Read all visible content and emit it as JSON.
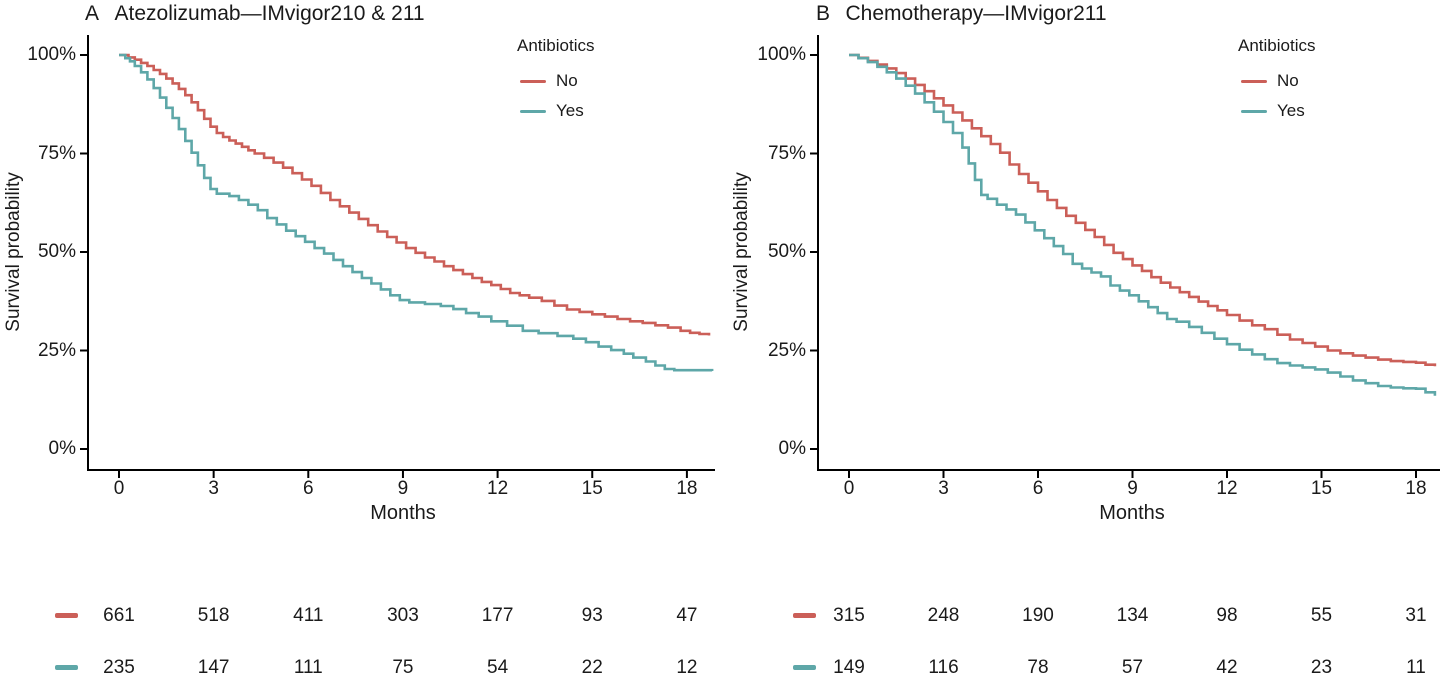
{
  "figure": {
    "background": "#ffffff",
    "axis_color": "#000000",
    "text_color": "#1a1a1a"
  },
  "chart_data": [
    {
      "type": "line",
      "subtype": "kaplan-meier-step",
      "panel_label": "A",
      "title": "Atezolizumab—IMvigor210 & 211",
      "xlabel": "Months",
      "ylabel": "Survival probability",
      "xlim": [
        0,
        18.8
      ],
      "ylim": [
        0,
        100
      ],
      "grid": false,
      "x_ticks": [
        0,
        3,
        6,
        9,
        12,
        15,
        18
      ],
      "x_tick_labels": [
        "0",
        "3",
        "6",
        "9",
        "12",
        "15",
        "18"
      ],
      "y_ticks": [
        100,
        75,
        50,
        25,
        0
      ],
      "y_tick_labels": [
        "100%",
        "75%",
        "50%",
        "25%",
        "0%"
      ],
      "legend": {
        "title": "Antibiotics",
        "position": "top-right-inside"
      },
      "series": [
        {
          "name": "No",
          "color": "#CB5F58",
          "points": [
            [
              0,
              100
            ],
            [
              0.3,
              99.4
            ],
            [
              0.5,
              98.8
            ],
            [
              0.7,
              98
            ],
            [
              0.9,
              97.2
            ],
            [
              1.1,
              96.2
            ],
            [
              1.3,
              95.2
            ],
            [
              1.5,
              94
            ],
            [
              1.7,
              92.8
            ],
            [
              1.9,
              91.4
            ],
            [
              2.1,
              89.8
            ],
            [
              2.3,
              88
            ],
            [
              2.5,
              86
            ],
            [
              2.7,
              83.8
            ],
            [
              2.9,
              81.8
            ],
            [
              3.1,
              80.2
            ],
            [
              3.3,
              79.2
            ],
            [
              3.5,
              78.3
            ],
            [
              3.7,
              77.5
            ],
            [
              3.9,
              76.7
            ],
            [
              4.1,
              75.8
            ],
            [
              4.3,
              75
            ],
            [
              4.6,
              73.9
            ],
            [
              4.9,
              72.7
            ],
            [
              5.2,
              71.4
            ],
            [
              5.5,
              70
            ],
            [
              5.8,
              68.4
            ],
            [
              6.1,
              66.8
            ],
            [
              6.4,
              65
            ],
            [
              6.7,
              63.2
            ],
            [
              7,
              61.6
            ],
            [
              7.3,
              60
            ],
            [
              7.6,
              58.4
            ],
            [
              7.9,
              56.8
            ],
            [
              8.2,
              55.2
            ],
            [
              8.5,
              53.8
            ],
            [
              8.8,
              52.4
            ],
            [
              9.1,
              51
            ],
            [
              9.4,
              49.8
            ],
            [
              9.7,
              48.6
            ],
            [
              10,
              47.6
            ],
            [
              10.3,
              46.4
            ],
            [
              10.6,
              45.4
            ],
            [
              10.9,
              44.4
            ],
            [
              11.2,
              43.4
            ],
            [
              11.5,
              42.4
            ],
            [
              11.8,
              41.6
            ],
            [
              12.1,
              40.6
            ],
            [
              12.4,
              39.6
            ],
            [
              12.7,
              39
            ],
            [
              13,
              38.4
            ],
            [
              13.4,
              37.6
            ],
            [
              13.8,
              36.4
            ],
            [
              14.2,
              35.4
            ],
            [
              14.6,
              34.8
            ],
            [
              15,
              34.2
            ],
            [
              15.4,
              33.6
            ],
            [
              15.8,
              33
            ],
            [
              16.2,
              32.4
            ],
            [
              16.6,
              32
            ],
            [
              17,
              31.4
            ],
            [
              17.4,
              30.8
            ],
            [
              17.8,
              30
            ],
            [
              18.1,
              29.5
            ],
            [
              18.4,
              29.2
            ],
            [
              18.7,
              28.8
            ]
          ]
        },
        {
          "name": "Yes",
          "color": "#5EA7A8",
          "points": [
            [
              0,
              100
            ],
            [
              0.2,
              99.2
            ],
            [
              0.35,
              98.4
            ],
            [
              0.5,
              97.2
            ],
            [
              0.7,
              95.6
            ],
            [
              0.9,
              93.8
            ],
            [
              1.1,
              91.6
            ],
            [
              1.3,
              89.2
            ],
            [
              1.5,
              86.6
            ],
            [
              1.7,
              84
            ],
            [
              1.9,
              81.2
            ],
            [
              2.1,
              78.2
            ],
            [
              2.3,
              75.2
            ],
            [
              2.5,
              72
            ],
            [
              2.7,
              68.8
            ],
            [
              2.9,
              66
            ],
            [
              3.1,
              64.8
            ],
            [
              3.5,
              64.2
            ],
            [
              3.8,
              63.2
            ],
            [
              4.1,
              62
            ],
            [
              4.4,
              60.6
            ],
            [
              4.7,
              58.6
            ],
            [
              5,
              57
            ],
            [
              5.3,
              55.4
            ],
            [
              5.6,
              54
            ],
            [
              5.9,
              52.6
            ],
            [
              6.2,
              51
            ],
            [
              6.5,
              49.6
            ],
            [
              6.8,
              48
            ],
            [
              7.1,
              46.4
            ],
            [
              7.4,
              44.9
            ],
            [
              7.7,
              43.4
            ],
            [
              8,
              42
            ],
            [
              8.3,
              40.5
            ],
            [
              8.6,
              39
            ],
            [
              8.9,
              37.8
            ],
            [
              9.2,
              37.2
            ],
            [
              9.7,
              36.8
            ],
            [
              10.2,
              36.3
            ],
            [
              10.6,
              35.5
            ],
            [
              11,
              34.5
            ],
            [
              11.4,
              33.6
            ],
            [
              11.8,
              32.4
            ],
            [
              12.3,
              31.3
            ],
            [
              12.8,
              30
            ],
            [
              13.3,
              29.4
            ],
            [
              13.9,
              28.7
            ],
            [
              14.4,
              28
            ],
            [
              14.8,
              27.1
            ],
            [
              15.2,
              26
            ],
            [
              15.6,
              25.1
            ],
            [
              16,
              24.2
            ],
            [
              16.3,
              23.2
            ],
            [
              16.7,
              22.2
            ],
            [
              17,
              21.2
            ],
            [
              17.3,
              20.3
            ],
            [
              17.6,
              20
            ],
            [
              18.8,
              19.8
            ]
          ]
        }
      ],
      "risk_table": {
        "x": [
          0,
          3,
          6,
          9,
          12,
          15,
          18
        ],
        "rows": [
          {
            "name": "No",
            "color": "#CB5F58",
            "values": [
              "661",
              "518",
              "411",
              "303",
              "177",
              "93",
              "47"
            ]
          },
          {
            "name": "Yes",
            "color": "#5EA7A8",
            "values": [
              "235",
              "147",
              "111",
              "75",
              "54",
              "22",
              "12"
            ]
          }
        ]
      }
    },
    {
      "type": "line",
      "subtype": "kaplan-meier-step",
      "panel_label": "B",
      "title": "Chemotherapy—IMvigor211",
      "xlabel": "Months",
      "ylabel": "Survival probability",
      "xlim": [
        0,
        18.8
      ],
      "ylim": [
        0,
        100
      ],
      "grid": false,
      "x_ticks": [
        0,
        3,
        6,
        9,
        12,
        15,
        18
      ],
      "x_tick_labels": [
        "0",
        "3",
        "6",
        "9",
        "12",
        "15",
        "18"
      ],
      "y_ticks": [
        100,
        75,
        50,
        25,
        0
      ],
      "y_tick_labels": [
        "100%",
        "75%",
        "50%",
        "25%",
        "0%"
      ],
      "legend": {
        "title": "Antibiotics",
        "position": "top-right-inside"
      },
      "series": [
        {
          "name": "No",
          "color": "#CB5F58",
          "points": [
            [
              0,
              100
            ],
            [
              0.3,
              99.3
            ],
            [
              0.6,
              98.5
            ],
            [
              0.9,
              97.6
            ],
            [
              1.2,
              96.6
            ],
            [
              1.5,
              95.4
            ],
            [
              1.8,
              94
            ],
            [
              2.1,
              92.4
            ],
            [
              2.4,
              90.8
            ],
            [
              2.7,
              89
            ],
            [
              3,
              87.2
            ],
            [
              3.3,
              85.4
            ],
            [
              3.6,
              83.4
            ],
            [
              3.9,
              81.4
            ],
            [
              4.2,
              79.4
            ],
            [
              4.5,
              77.4
            ],
            [
              4.8,
              75.2
            ],
            [
              5.1,
              72.2
            ],
            [
              5.4,
              69.8
            ],
            [
              5.7,
              67.6
            ],
            [
              6,
              65.4
            ],
            [
              6.3,
              63.2
            ],
            [
              6.6,
              61.2
            ],
            [
              6.9,
              59.2
            ],
            [
              7.2,
              57.4
            ],
            [
              7.5,
              55.6
            ],
            [
              7.8,
              53.8
            ],
            [
              8.1,
              51.8
            ],
            [
              8.4,
              49.8
            ],
            [
              8.7,
              48.2
            ],
            [
              9,
              46.6
            ],
            [
              9.3,
              45.2
            ],
            [
              9.6,
              43.6
            ],
            [
              9.9,
              42.2
            ],
            [
              10.2,
              41
            ],
            [
              10.5,
              39.8
            ],
            [
              10.8,
              38.6
            ],
            [
              11.1,
              37.4
            ],
            [
              11.4,
              36.3
            ],
            [
              11.7,
              35.2
            ],
            [
              12,
              34
            ],
            [
              12.4,
              32.6
            ],
            [
              12.8,
              31.4
            ],
            [
              13.2,
              30.4
            ],
            [
              13.6,
              29
            ],
            [
              14,
              27.8
            ],
            [
              14.4,
              26.9
            ],
            [
              14.8,
              26
            ],
            [
              15.2,
              25
            ],
            [
              15.6,
              24.3
            ],
            [
              16,
              23.7
            ],
            [
              16.4,
              23.2
            ],
            [
              16.8,
              22.7
            ],
            [
              17.2,
              22.3
            ],
            [
              17.6,
              22.1
            ],
            [
              18,
              21.9
            ],
            [
              18.3,
              21.4
            ],
            [
              18.6,
              21
            ]
          ]
        },
        {
          "name": "Yes",
          "color": "#5EA7A8",
          "points": [
            [
              0,
              100
            ],
            [
              0.3,
              99.2
            ],
            [
              0.6,
              98.2
            ],
            [
              0.9,
              97
            ],
            [
              1.2,
              95.6
            ],
            [
              1.5,
              94
            ],
            [
              1.8,
              92.2
            ],
            [
              2.1,
              90.2
            ],
            [
              2.4,
              88
            ],
            [
              2.7,
              85.6
            ],
            [
              3,
              83
            ],
            [
              3.3,
              80.2
            ],
            [
              3.6,
              76.5
            ],
            [
              3.8,
              72.5
            ],
            [
              4,
              68.3
            ],
            [
              4.2,
              64.5
            ],
            [
              4.4,
              63.5
            ],
            [
              4.7,
              62
            ],
            [
              5,
              60.8
            ],
            [
              5.3,
              59.5
            ],
            [
              5.6,
              57.5
            ],
            [
              5.9,
              55.5
            ],
            [
              6.2,
              53.5
            ],
            [
              6.5,
              51.5
            ],
            [
              6.8,
              49.5
            ],
            [
              7.1,
              47
            ],
            [
              7.4,
              45.8
            ],
            [
              7.7,
              44.8
            ],
            [
              8,
              43.8
            ],
            [
              8.3,
              41.5
            ],
            [
              8.6,
              40.2
            ],
            [
              8.9,
              39
            ],
            [
              9.2,
              37.5
            ],
            [
              9.5,
              36
            ],
            [
              9.8,
              34.5
            ],
            [
              10.1,
              33
            ],
            [
              10.4,
              32.3
            ],
            [
              10.8,
              31
            ],
            [
              11.2,
              29.5
            ],
            [
              11.6,
              28
            ],
            [
              12,
              26.6
            ],
            [
              12.4,
              25.2
            ],
            [
              12.8,
              24
            ],
            [
              13.2,
              22.8
            ],
            [
              13.6,
              21.8
            ],
            [
              14,
              21.2
            ],
            [
              14.4,
              20.7
            ],
            [
              14.8,
              20.2
            ],
            [
              15.2,
              19.4
            ],
            [
              15.6,
              18.4
            ],
            [
              16,
              17.4
            ],
            [
              16.4,
              16.7
            ],
            [
              16.8,
              16
            ],
            [
              17.2,
              15.6
            ],
            [
              17.6,
              15.4
            ],
            [
              18,
              15.3
            ],
            [
              18.3,
              14.4
            ],
            [
              18.6,
              13.5
            ]
          ]
        }
      ],
      "risk_table": {
        "x": [
          0,
          3,
          6,
          9,
          12,
          15,
          18
        ],
        "rows": [
          {
            "name": "No",
            "color": "#CB5F58",
            "values": [
              "315",
              "248",
              "190",
              "134",
              "98",
              "55",
              "31"
            ]
          },
          {
            "name": "Yes",
            "color": "#5EA7A8",
            "values": [
              "149",
              "116",
              "78",
              "57",
              "42",
              "23",
              "11"
            ]
          }
        ]
      }
    }
  ]
}
